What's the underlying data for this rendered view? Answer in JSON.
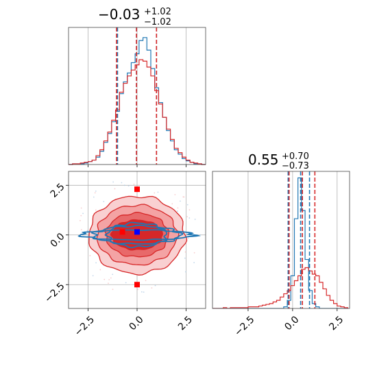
{
  "chart_data": {
    "type": "corner",
    "parameters": [
      {
        "title": {
          "median": "−0.03",
          "plus": "+1.02",
          "minus": "−1.02"
        },
        "xlim": [
          -3.5,
          3.5
        ],
        "ticks": [
          -2.5,
          0.0,
          2.5
        ],
        "tick_labels": [
          "−2.5",
          "0.0",
          "2.5"
        ],
        "quantiles_red": [
          -1.05,
          -0.03,
          0.99
        ],
        "quantiles_blue": [
          -1.0,
          -0.03,
          0.99
        ]
      },
      {
        "title": {
          "median": "0.55",
          "plus": "+0.70",
          "minus": "−0.73"
        },
        "xlim": [
          -4.5,
          3.2
        ],
        "ticks": [
          -2.5,
          0.0,
          2.5
        ],
        "tick_labels": [
          "−2.5",
          "0.0",
          "2.5"
        ],
        "quantiles_red": [
          -0.2,
          0.55,
          1.25
        ],
        "quantiles_blue": [
          -0.25,
          0.45,
          0.95
        ]
      }
    ],
    "hist_bins_1": [
      -3.5,
      -3.3,
      -3.1,
      -2.9,
      -2.7,
      -2.5,
      -2.3,
      -2.1,
      -1.9,
      -1.7,
      -1.5,
      -1.3,
      -1.1,
      -0.9,
      -0.7,
      -0.5,
      -0.3,
      -0.1,
      0.1,
      0.3,
      0.5,
      0.7,
      0.9,
      1.1,
      1.3,
      1.5,
      1.7,
      1.9,
      2.1,
      2.3,
      2.5,
      2.7,
      2.9,
      3.1,
      3.3,
      3.5
    ],
    "hist_red_1": [
      0,
      1,
      1,
      2,
      3,
      4,
      6,
      12,
      20,
      32,
      44,
      60,
      74,
      98,
      110,
      120,
      128,
      135,
      142,
      140,
      132,
      120,
      100,
      82,
      64,
      48,
      34,
      22,
      16,
      10,
      6,
      3,
      2,
      1,
      0
    ],
    "hist_blue_1": [
      0,
      1,
      1,
      1,
      2,
      4,
      6,
      10,
      18,
      30,
      42,
      58,
      72,
      96,
      112,
      124,
      138,
      150,
      168,
      172,
      155,
      130,
      104,
      84,
      64,
      46,
      32,
      20,
      14,
      8,
      5,
      3,
      1,
      1,
      0
    ],
    "hist_bins_2": [
      -4.5,
      -4.3,
      -4.1,
      -3.9,
      -3.7,
      -3.5,
      -3.3,
      -3.1,
      -2.9,
      -2.7,
      -2.5,
      -2.3,
      -2.1,
      -1.9,
      -1.7,
      -1.5,
      -1.3,
      -1.1,
      -0.9,
      -0.7,
      -0.5,
      -0.3,
      -0.1,
      0.1,
      0.3,
      0.5,
      0.7,
      0.9,
      1.1,
      1.3,
      1.5,
      1.7,
      1.9,
      2.1,
      2.3,
      2.5,
      2.7,
      2.9,
      3.1
    ],
    "hist_red_2": [
      0,
      0,
      0,
      1,
      0,
      1,
      1,
      1,
      1,
      1,
      2,
      2,
      2,
      3,
      4,
      5,
      6,
      8,
      10,
      14,
      18,
      22,
      28,
      34,
      40,
      48,
      50,
      46,
      42,
      40,
      32,
      24,
      16,
      10,
      6,
      3,
      2,
      1
    ],
    "hist_blue_2": [
      0,
      0,
      0,
      0,
      0,
      0,
      0,
      0,
      0,
      0,
      0,
      0,
      0,
      0,
      0,
      0,
      0,
      0,
      0,
      0,
      2,
      10,
      40,
      110,
      160,
      120,
      60,
      22,
      6,
      2,
      0,
      0,
      0,
      0,
      0,
      0,
      0,
      0
    ],
    "scatter_2d": {
      "xlim": [
        -3.5,
        3.5
      ],
      "ylim": [
        -3.7,
        3.2
      ],
      "x_ticks": [
        -2.5,
        0.0,
        2.5
      ],
      "x_tick_labels": [
        "−2.5",
        "0.0",
        "2.5"
      ],
      "y_ticks": [
        -2.5,
        0.0,
        2.5
      ],
      "y_tick_labels": [
        "−2.5",
        "0.0",
        "2.5"
      ],
      "red_contour_levels": [
        {
          "rx": 2.45,
          "ry": 1.95
        },
        {
          "rx": 2.05,
          "ry": 1.5
        },
        {
          "rx": 1.6,
          "ry": 1.1
        },
        {
          "rx": 1.3,
          "ry": 0.75
        }
      ],
      "blue_contour_levels": [
        {
          "rx": 2.9,
          "ry": 0.25
        },
        {
          "rx": 2.2,
          "ry": 0.45
        },
        {
          "rx": 1.5,
          "ry": 0.6
        }
      ],
      "red_markers": [
        {
          "x": 0.0,
          "y": 2.3
        },
        {
          "x": 0.0,
          "y": -2.5
        },
        {
          "x": -0.75,
          "y": 0.15
        }
      ],
      "blue_marker": {
        "x": 0.0,
        "y": 0.15
      }
    },
    "colors": {
      "red": "#d62728",
      "blue": "#1f77b4",
      "red_mid": "#e8696a",
      "red_light": "#f4a3a4",
      "red_faint": "#f9d0d1"
    }
  }
}
